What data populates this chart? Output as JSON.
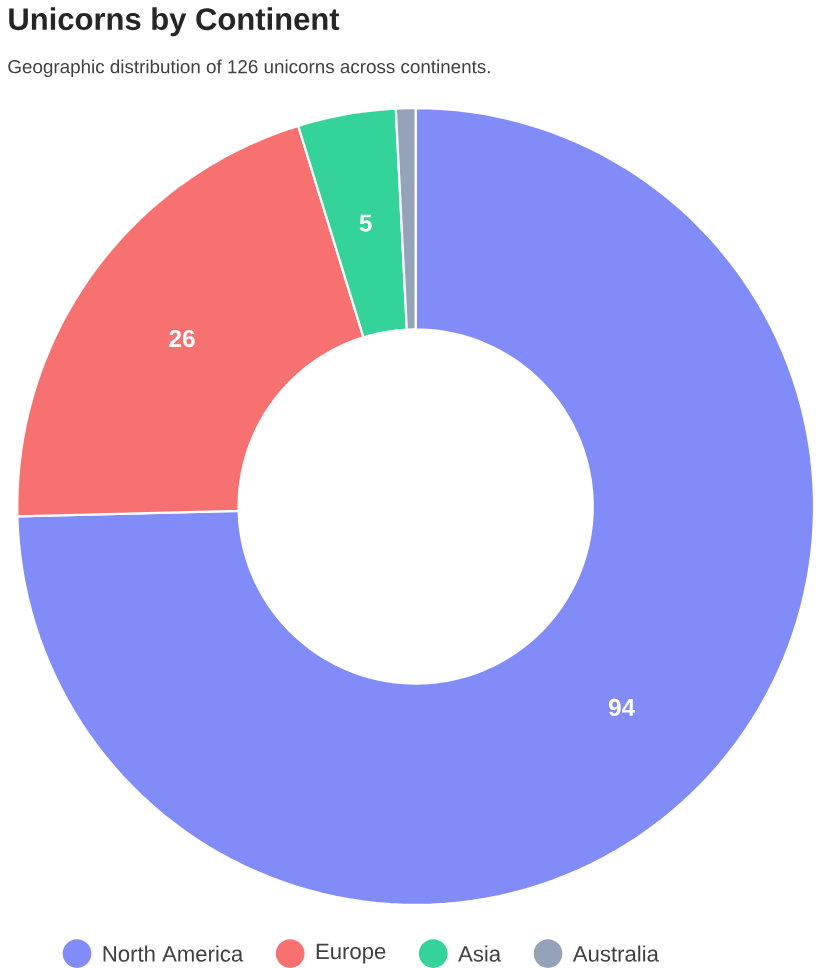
{
  "chart_data": {
    "type": "donut",
    "title": "Unicorns by Continent",
    "subtitle": "Geographic distribution of 126 unicorns across continents.",
    "categories": [
      "North America",
      "Europe",
      "Asia",
      "Australia"
    ],
    "values": [
      94,
      26,
      5,
      1
    ],
    "colors": [
      "#818cf8",
      "#f87171",
      "#34d399",
      "#94a3b8"
    ],
    "value_labels": [
      "94",
      "26",
      "5",
      null
    ],
    "legend": "bottom"
  }
}
